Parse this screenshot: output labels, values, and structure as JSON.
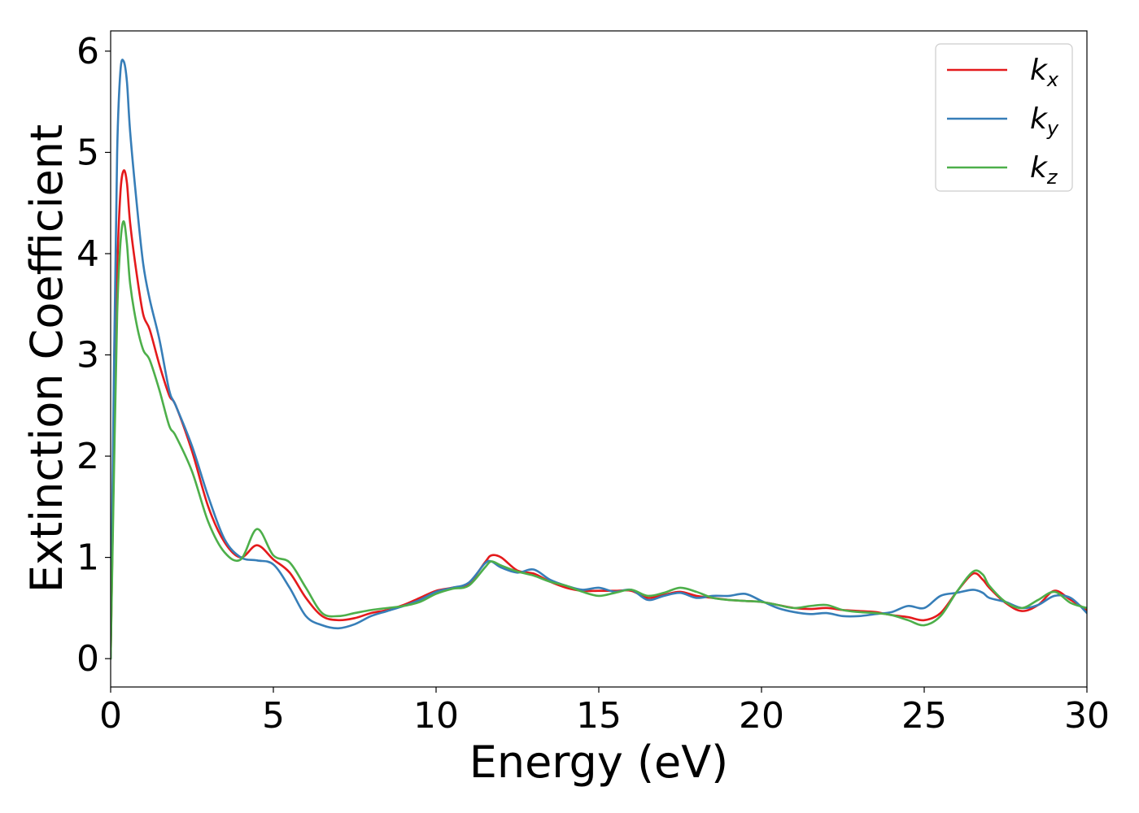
{
  "chart_data": {
    "type": "line",
    "xlabel": "Energy (eV)",
    "ylabel": "Extinction Coefficient",
    "xlim": [
      0,
      30
    ],
    "ylim": [
      -0.28,
      6.2
    ],
    "xticks": [
      "0",
      "5",
      "10",
      "15",
      "20",
      "25",
      "30"
    ],
    "yticks": [
      "0",
      "1",
      "2",
      "3",
      "4",
      "5",
      "6"
    ],
    "legend_position": "top-right",
    "grid": false,
    "series": [
      {
        "name": "k_x",
        "label_main": "k",
        "label_sub": "x",
        "color": "#e41a1c",
        "x": [
          0,
          0.1,
          0.2,
          0.3,
          0.4,
          0.5,
          0.6,
          0.8,
          1.0,
          1.2,
          1.5,
          1.8,
          2.0,
          2.5,
          3.0,
          3.5,
          4.0,
          4.5,
          5.0,
          5.5,
          6.0,
          6.5,
          7.0,
          7.5,
          8.0,
          8.5,
          9.0,
          9.5,
          10.0,
          10.5,
          11.0,
          11.5,
          11.7,
          12.0,
          12.5,
          13.0,
          13.5,
          14.0,
          14.5,
          15.0,
          15.5,
          16.0,
          16.5,
          17.0,
          17.5,
          18.0,
          18.5,
          19.0,
          19.5,
          20.0,
          20.5,
          21.0,
          21.5,
          22.0,
          22.5,
          23.0,
          23.5,
          24.0,
          24.5,
          25.0,
          25.5,
          26.0,
          26.5,
          26.8,
          27.0,
          27.5,
          28.0,
          28.5,
          29.0,
          29.5,
          30.0
        ],
        "values": [
          0.0,
          2.0,
          3.8,
          4.6,
          4.82,
          4.7,
          4.3,
          3.8,
          3.4,
          3.25,
          2.9,
          2.6,
          2.5,
          2.05,
          1.5,
          1.15,
          1.0,
          1.12,
          0.98,
          0.85,
          0.6,
          0.42,
          0.38,
          0.4,
          0.45,
          0.48,
          0.53,
          0.6,
          0.67,
          0.7,
          0.74,
          0.95,
          1.02,
          1.0,
          0.87,
          0.84,
          0.76,
          0.7,
          0.67,
          0.67,
          0.67,
          0.67,
          0.6,
          0.63,
          0.66,
          0.62,
          0.6,
          0.58,
          0.57,
          0.56,
          0.53,
          0.5,
          0.49,
          0.5,
          0.48,
          0.47,
          0.46,
          0.43,
          0.41,
          0.38,
          0.45,
          0.66,
          0.84,
          0.78,
          0.7,
          0.55,
          0.47,
          0.53,
          0.67,
          0.58,
          0.48
        ]
      },
      {
        "name": "k_y",
        "label_main": "k",
        "label_sub": "y",
        "color": "#377eb8",
        "x": [
          0,
          0.1,
          0.2,
          0.3,
          0.4,
          0.5,
          0.6,
          0.8,
          1.0,
          1.2,
          1.5,
          1.8,
          2.0,
          2.5,
          3.0,
          3.5,
          4.0,
          4.5,
          5.0,
          5.5,
          6.0,
          6.5,
          7.0,
          7.5,
          8.0,
          8.5,
          9.0,
          9.5,
          10.0,
          10.5,
          11.0,
          11.5,
          11.7,
          12.0,
          12.5,
          13.0,
          13.5,
          14.0,
          14.5,
          15.0,
          15.5,
          16.0,
          16.5,
          17.0,
          17.5,
          18.0,
          18.5,
          19.0,
          19.5,
          20.0,
          20.5,
          21.0,
          21.5,
          22.0,
          22.5,
          23.0,
          23.5,
          24.0,
          24.5,
          25.0,
          25.5,
          26.0,
          26.5,
          26.8,
          27.0,
          27.5,
          28.0,
          28.5,
          29.0,
          29.5,
          30.0
        ],
        "values": [
          0.0,
          2.8,
          5.0,
          5.8,
          5.9,
          5.7,
          5.2,
          4.5,
          3.9,
          3.55,
          3.15,
          2.65,
          2.5,
          2.1,
          1.6,
          1.18,
          1.0,
          0.97,
          0.93,
          0.7,
          0.42,
          0.33,
          0.3,
          0.34,
          0.42,
          0.47,
          0.52,
          0.58,
          0.66,
          0.7,
          0.75,
          0.94,
          0.96,
          0.9,
          0.85,
          0.88,
          0.78,
          0.72,
          0.68,
          0.7,
          0.66,
          0.68,
          0.58,
          0.62,
          0.65,
          0.6,
          0.62,
          0.62,
          0.64,
          0.57,
          0.5,
          0.46,
          0.44,
          0.45,
          0.42,
          0.42,
          0.44,
          0.46,
          0.52,
          0.5,
          0.62,
          0.65,
          0.68,
          0.65,
          0.6,
          0.56,
          0.5,
          0.53,
          0.62,
          0.6,
          0.45
        ]
      },
      {
        "name": "k_z",
        "label_main": "k",
        "label_sub": "z",
        "color": "#4daf4a",
        "x": [
          0,
          0.1,
          0.2,
          0.3,
          0.4,
          0.5,
          0.6,
          0.8,
          1.0,
          1.2,
          1.5,
          1.8,
          2.0,
          2.5,
          3.0,
          3.5,
          4.0,
          4.5,
          5.0,
          5.5,
          6.0,
          6.5,
          7.0,
          7.5,
          8.0,
          8.5,
          9.0,
          9.5,
          10.0,
          10.5,
          11.0,
          11.5,
          11.7,
          12.0,
          12.5,
          13.0,
          13.5,
          14.0,
          14.5,
          15.0,
          15.5,
          16.0,
          16.5,
          17.0,
          17.5,
          18.0,
          18.5,
          19.0,
          19.5,
          20.0,
          20.5,
          21.0,
          21.5,
          22.0,
          22.5,
          23.0,
          23.5,
          24.0,
          24.5,
          25.0,
          25.5,
          26.0,
          26.5,
          26.8,
          27.0,
          27.5,
          28.0,
          28.5,
          29.0,
          29.5,
          30.0
        ],
        "values": [
          0.0,
          1.8,
          3.4,
          4.1,
          4.32,
          4.1,
          3.7,
          3.3,
          3.05,
          2.95,
          2.65,
          2.3,
          2.2,
          1.85,
          1.35,
          1.05,
          0.98,
          1.28,
          1.02,
          0.95,
          0.7,
          0.45,
          0.42,
          0.45,
          0.48,
          0.5,
          0.52,
          0.56,
          0.64,
          0.69,
          0.72,
          0.9,
          0.96,
          0.92,
          0.86,
          0.82,
          0.76,
          0.72,
          0.66,
          0.62,
          0.65,
          0.68,
          0.62,
          0.65,
          0.7,
          0.66,
          0.6,
          0.58,
          0.57,
          0.56,
          0.53,
          0.5,
          0.52,
          0.53,
          0.48,
          0.46,
          0.45,
          0.43,
          0.38,
          0.33,
          0.42,
          0.66,
          0.86,
          0.83,
          0.72,
          0.56,
          0.5,
          0.58,
          0.66,
          0.55,
          0.5
        ]
      }
    ]
  }
}
